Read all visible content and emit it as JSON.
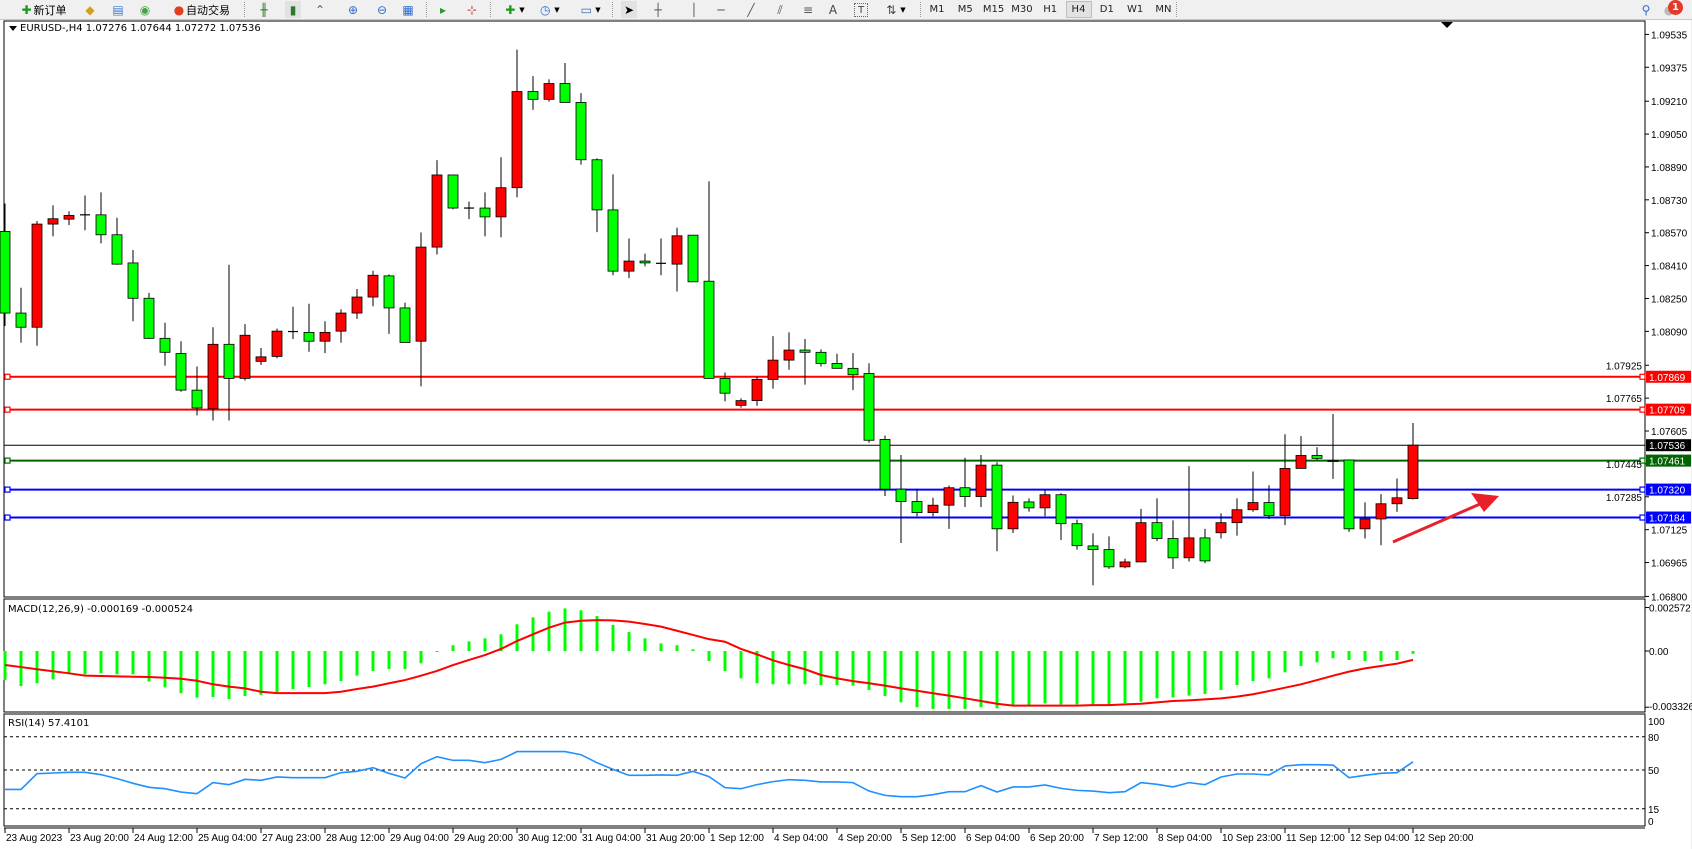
{
  "toolbar": {
    "new_order": {
      "label": "新订单",
      "icon": "new-order-plus-icon"
    },
    "auto_trading": {
      "label": "自动交易",
      "icon": "auto-trading-icon"
    },
    "icons": [
      "market-watch-icon",
      "navigator-icon",
      "terminal-signal-icon",
      "bar-chart-icon",
      "candlesticks-icon",
      "line-chart-icon",
      "zoom-in-icon",
      "zoom-out-icon",
      "tile-windows-icon",
      "auto-scroll-icon",
      "chart-shift-icon",
      "indicators-icon",
      "periods-icon",
      "templates-icon",
      "cursor-icon",
      "crosshair-icon",
      "vertical-line-icon",
      "horizontal-line-icon",
      "trendline-icon",
      "equidistant-channel-icon",
      "fibonacci-icon",
      "text-icon",
      "text-label-icon",
      "arrows-icon"
    ],
    "text_tool": "A",
    "text_label_tool": "T",
    "timeframes": [
      "M1",
      "M5",
      "M15",
      "M30",
      "H1",
      "H4",
      "D1",
      "W1",
      "MN"
    ],
    "active_timeframe": "H4",
    "notification_count": "1"
  },
  "chart_data": {
    "type": "candlestick",
    "header": "EURUSD-,H4  1.07276 1.07644 1.07272 1.07536",
    "symbol": "EURUSD-",
    "timeframe": "H4",
    "up_color": "#ff0000",
    "down_color": "#00ff00",
    "ylim": [
      1.068,
      1.09595
    ],
    "price_axis": {
      "ticks": [
        "1.09535",
        "1.09375",
        "1.09210",
        "1.09050",
        "1.08890",
        "1.08730",
        "1.08570",
        "1.08410",
        "1.08250",
        "1.08090",
        "1.07925",
        "1.07765",
        "1.07605",
        "1.07445",
        "1.07285",
        "1.07125",
        "1.06965",
        "1.06800"
      ]
    },
    "time_axis": [
      "23 Aug 2023",
      "23 Aug 20:00",
      "24 Aug 12:00",
      "25 Aug 04:00",
      "27 Aug 23:00",
      "28 Aug 12:00",
      "29 Aug 04:00",
      "29 Aug 20:00",
      "30 Aug 12:00",
      "31 Aug 04:00",
      "31 Aug 20:00",
      "1 Sep 12:00",
      "4 Sep 04:00",
      "4 Sep 20:00",
      "5 Sep 12:00",
      "6 Sep 04:00",
      "6 Sep 20:00",
      "7 Sep 12:00",
      "8 Sep 04:00",
      "10 Sep 23:00",
      "11 Sep 12:00",
      "12 Sep 04:00",
      "12 Sep 20:00"
    ],
    "time_axis_every_n_bars": 4,
    "ohlc": [
      [
        1.08576,
        1.08712,
        1.08116,
        1.08179
      ],
      [
        1.08179,
        1.08302,
        1.08035,
        1.0811
      ],
      [
        1.0811,
        1.08627,
        1.0802,
        1.08612
      ],
      [
        1.08612,
        1.08703,
        1.08553,
        1.08638
      ],
      [
        1.08636,
        1.08674,
        1.08607,
        1.08654
      ],
      [
        1.08657,
        1.08751,
        1.08582,
        1.08657
      ],
      [
        1.08657,
        1.08766,
        1.08518,
        1.0856
      ],
      [
        1.0856,
        1.08643,
        1.08414,
        1.08417
      ],
      [
        1.08423,
        1.08486,
        1.08139,
        1.08251
      ],
      [
        1.08251,
        1.08277,
        1.08053,
        1.08056
      ],
      [
        1.08056,
        1.08132,
        1.07923,
        1.07988
      ],
      [
        1.07982,
        1.08042,
        1.07796,
        1.07804
      ],
      [
        1.07804,
        1.07919,
        1.07681,
        1.07717
      ],
      [
        1.07713,
        1.0811,
        1.07656,
        1.08027
      ],
      [
        1.08027,
        1.08414,
        1.07656,
        1.07861
      ],
      [
        1.07861,
        1.08125,
        1.07851,
        1.08071
      ],
      [
        1.07944,
        1.08009,
        1.07926,
        1.07966
      ],
      [
        1.07968,
        1.08103,
        1.07959,
        1.08091
      ],
      [
        1.08089,
        1.0821,
        1.08053,
        1.08089
      ],
      [
        1.08085,
        1.08224,
        1.07991,
        1.08042
      ],
      [
        1.08042,
        1.08139,
        1.07984,
        1.08085
      ],
      [
        1.08091,
        1.08197,
        1.08035,
        1.08179
      ],
      [
        1.08179,
        1.08296,
        1.0815,
        1.08257
      ],
      [
        1.08257,
        1.08385,
        1.08212,
        1.08363
      ],
      [
        1.0836,
        1.08367,
        1.08078,
        1.08204
      ],
      [
        1.08204,
        1.0823,
        1.08036,
        1.08036
      ],
      [
        1.08042,
        1.08571,
        1.07822,
        1.085
      ],
      [
        1.085,
        1.08923,
        1.08464,
        1.08851
      ],
      [
        1.08851,
        1.08851,
        1.08684,
        1.0869
      ],
      [
        1.0869,
        1.08721,
        1.08636,
        1.0869
      ],
      [
        1.0869,
        1.08766,
        1.08553,
        1.08647
      ],
      [
        1.08647,
        1.08937,
        1.08547,
        1.08789
      ],
      [
        1.08789,
        1.09461,
        1.08742,
        1.09257
      ],
      [
        1.09257,
        1.09332,
        1.09168,
        1.09219
      ],
      [
        1.09219,
        1.09316,
        1.09208,
        1.09296
      ],
      [
        1.09296,
        1.09396,
        1.09204,
        1.09204
      ],
      [
        1.09204,
        1.09249,
        1.08901,
        1.08925
      ],
      [
        1.08925,
        1.08932,
        1.08573,
        1.08681
      ],
      [
        1.08681,
        1.08854,
        1.08363,
        1.08383
      ],
      [
        1.08383,
        1.08542,
        1.08349,
        1.08432
      ],
      [
        1.08432,
        1.08468,
        1.08406,
        1.08423
      ],
      [
        1.08421,
        1.08542,
        1.08363,
        1.08421
      ],
      [
        1.08417,
        1.08594,
        1.08284,
        1.08555
      ],
      [
        1.08558,
        1.08558,
        1.08331,
        1.08331
      ],
      [
        1.08334,
        1.0882,
        1.07861,
        1.07861
      ],
      [
        1.07861,
        1.0789,
        1.07749,
        1.07789
      ],
      [
        1.0773,
        1.07764,
        1.07719,
        1.07753
      ],
      [
        1.07753,
        1.07869,
        1.07728,
        1.07856
      ],
      [
        1.07856,
        1.08067,
        1.07811,
        1.0795
      ],
      [
        1.0795,
        1.08085,
        1.07903,
        1.07999
      ],
      [
        1.07999,
        1.08053,
        1.07831,
        1.07988
      ],
      [
        1.07988,
        1.08002,
        1.07919,
        1.07934
      ],
      [
        1.07934,
        1.07981,
        1.0791,
        1.0791
      ],
      [
        1.0791,
        1.07984,
        1.07804,
        1.07879
      ],
      [
        1.07885,
        1.07935,
        1.07548,
        1.0756
      ],
      [
        1.07564,
        1.07583,
        1.07289,
        1.07322
      ],
      [
        1.07322,
        1.07488,
        1.0706,
        1.07262
      ],
      [
        1.07262,
        1.07322,
        1.0719,
        1.07208
      ],
      [
        1.07208,
        1.0728,
        1.0719,
        1.07244
      ],
      [
        1.07244,
        1.0734,
        1.07129,
        1.07329
      ],
      [
        1.07329,
        1.07475,
        1.07235,
        1.07286
      ],
      [
        1.07286,
        1.07488,
        1.07235,
        1.07439
      ],
      [
        1.07439,
        1.07453,
        1.0702,
        1.07129
      ],
      [
        1.07129,
        1.07291,
        1.07109,
        1.07258
      ],
      [
        1.0726,
        1.07277,
        1.07213,
        1.07231
      ],
      [
        1.07231,
        1.07316,
        1.0719,
        1.07295
      ],
      [
        1.07295,
        1.07302,
        1.07074,
        1.07154
      ],
      [
        1.07154,
        1.07174,
        1.07028,
        1.07047
      ],
      [
        1.07046,
        1.07107,
        1.06854,
        1.07028
      ],
      [
        1.07028,
        1.07092,
        1.06934,
        1.06944
      ],
      [
        1.06944,
        1.06984,
        1.06937,
        1.06968
      ],
      [
        1.06968,
        1.07226,
        1.06968,
        1.07159
      ],
      [
        1.07159,
        1.07277,
        1.07069,
        1.07082
      ],
      [
        1.07082,
        1.0717,
        1.06934,
        1.06988
      ],
      [
        1.06988,
        1.07434,
        1.0697,
        1.07085
      ],
      [
        1.07085,
        1.07129,
        1.06962,
        1.06973
      ],
      [
        1.0711,
        1.07204,
        1.07082,
        1.07159
      ],
      [
        1.07159,
        1.07277,
        1.07096,
        1.07222
      ],
      [
        1.07222,
        1.07408,
        1.07212,
        1.07257
      ],
      [
        1.07257,
        1.07341,
        1.07177,
        1.07194
      ],
      [
        1.07194,
        1.07589,
        1.07147,
        1.07423
      ],
      [
        1.07423,
        1.0758,
        1.07423,
        1.07486
      ],
      [
        1.07486,
        1.07526,
        1.07464,
        1.07472
      ],
      [
        1.07461,
        1.07688,
        1.07372,
        1.07459
      ],
      [
        1.07464,
        1.07464,
        1.07114,
        1.07129
      ],
      [
        1.07129,
        1.07258,
        1.07082,
        1.07177
      ],
      [
        1.07177,
        1.07298,
        1.07049,
        1.07251
      ],
      [
        1.07251,
        1.07374,
        1.07212,
        1.0728
      ],
      [
        1.07276,
        1.07644,
        1.07272,
        1.07536
      ]
    ],
    "bid_line": {
      "value": "1.07536",
      "color": "#000000"
    },
    "horizontal_lines": [
      {
        "value": "1.07869",
        "color": "#ff0000"
      },
      {
        "value": "1.07709",
        "color": "#ff0000"
      },
      {
        "value": "1.07461",
        "color": "#006400"
      },
      {
        "value": "1.07320",
        "color": "#0000ff"
      },
      {
        "value": "1.07184",
        "color": "#0000ff"
      }
    ],
    "annotation_arrow": {
      "color": "#e8202a",
      "direction": "up-right"
    },
    "macd": {
      "label": "MACD(12,26,9) -0.000169 -0.000524",
      "axis_ticks": [
        "0.002572",
        "0.00",
        "-0.003326"
      ],
      "ylim": [
        -0.00361,
        0.00308
      ],
      "histogram_color": "#00ff00",
      "signal_color": "#ff0000",
      "histogram": [
        -0.00172,
        -0.00207,
        -0.00191,
        -0.00168,
        -0.00138,
        -0.00138,
        -0.00132,
        -0.00138,
        -0.00138,
        -0.00181,
        -0.00215,
        -0.0025,
        -0.00276,
        -0.00272,
        -0.00284,
        -0.00266,
        -0.0026,
        -0.00245,
        -0.00225,
        -0.00213,
        -0.00197,
        -0.00178,
        -0.00146,
        -0.00118,
        -0.00107,
        -0.00107,
        -0.00073,
        -4e-05,
        0.00034,
        0.00057,
        0.00075,
        0.00099,
        0.00158,
        0.00199,
        0.00233,
        0.00252,
        0.00241,
        0.00207,
        0.00154,
        0.00112,
        0.00075,
        0.00045,
        0.00034,
        0.0001,
        -0.00059,
        -0.00118,
        -0.00162,
        -0.00191,
        -0.00197,
        -0.00197,
        -0.00197,
        -0.00201,
        -0.00201,
        -0.00205,
        -0.00231,
        -0.00266,
        -0.00304,
        -0.00333,
        -0.00343,
        -0.00343,
        -0.00343,
        -0.00333,
        -0.00339,
        -0.00323,
        -0.00323,
        -0.0031,
        -0.00316,
        -0.00316,
        -0.00316,
        -0.00316,
        -0.00308,
        -0.003,
        -0.0028,
        -0.00274,
        -0.00264,
        -0.00254,
        -0.00231,
        -0.00201,
        -0.00178,
        -0.00162,
        -0.00126,
        -0.00089,
        -0.00067,
        -0.00043,
        -0.00053,
        -0.00059,
        -0.00059,
        -0.00053,
        -0.000169
      ],
      "signal": [
        -0.00083,
        -0.00095,
        -0.00108,
        -0.0012,
        -0.00132,
        -0.00146,
        -0.00148,
        -0.0015,
        -0.00152,
        -0.00154,
        -0.00158,
        -0.00164,
        -0.00176,
        -0.00197,
        -0.00211,
        -0.00221,
        -0.00241,
        -0.00249,
        -0.00249,
        -0.00249,
        -0.00249,
        -0.00241,
        -0.00225,
        -0.00211,
        -0.00191,
        -0.00172,
        -0.00146,
        -0.00118,
        -0.00083,
        -0.00053,
        -0.00024,
        0.00012,
        0.00059,
        0.00099,
        0.00138,
        0.00168,
        0.00179,
        0.00183,
        0.00181,
        0.00174,
        0.0016,
        0.00144,
        0.0012,
        0.00095,
        0.0007,
        0.00055,
        0.00012,
        -0.0002,
        -0.00055,
        -0.00083,
        -0.00108,
        -0.00142,
        -0.00162,
        -0.00178,
        -0.00191,
        -0.00205,
        -0.00221,
        -0.00235,
        -0.0025,
        -0.00264,
        -0.0028,
        -0.00296,
        -0.00312,
        -0.00323,
        -0.00323,
        -0.00323,
        -0.00323,
        -0.00323,
        -0.0032,
        -0.0032,
        -0.00316,
        -0.00312,
        -0.00304,
        -0.00296,
        -0.00292,
        -0.00286,
        -0.0028,
        -0.0027,
        -0.00256,
        -0.00237,
        -0.00217,
        -0.00197,
        -0.00172,
        -0.00146,
        -0.00122,
        -0.00103,
        -0.00089,
        -0.00075,
        -0.000524
      ]
    },
    "rsi": {
      "label": "RSI(14) 57.4101",
      "axis_ticks": [
        "100",
        "80",
        "50",
        "15",
        "0"
      ],
      "levels": [
        80,
        50,
        15
      ],
      "ylim": [
        0,
        100
      ],
      "line_color": "#1e90ff",
      "values": [
        32.5,
        32.5,
        46.7,
        47.3,
        47.9,
        47.9,
        45.8,
        42.2,
        38.0,
        34.4,
        33.1,
        30.1,
        28.6,
        38.6,
        36.8,
        41.6,
        40.7,
        43.7,
        43.1,
        43.1,
        43.1,
        47.6,
        48.8,
        52.1,
        47.0,
        42.8,
        55.7,
        62.0,
        58.7,
        58.7,
        56.6,
        59.6,
        66.6,
        66.6,
        66.6,
        66.6,
        63.8,
        56.6,
        50.6,
        45.2,
        45.2,
        45.5,
        45.2,
        48.8,
        44.0,
        34.1,
        33.1,
        36.8,
        39.5,
        41.3,
        40.7,
        39.2,
        39.2,
        38.6,
        31.0,
        27.1,
        25.9,
        25.9,
        27.7,
        30.4,
        30.4,
        35.9,
        30.1,
        34.7,
        34.7,
        36.5,
        33.4,
        31.6,
        31.0,
        29.5,
        30.4,
        38.6,
        37.1,
        34.7,
        38.6,
        36.8,
        43.7,
        46.4,
        46.4,
        45.5,
        53.6,
        54.8,
        54.8,
        54.5,
        43.1,
        45.2,
        47.0,
        47.6,
        57.4101
      ]
    }
  }
}
